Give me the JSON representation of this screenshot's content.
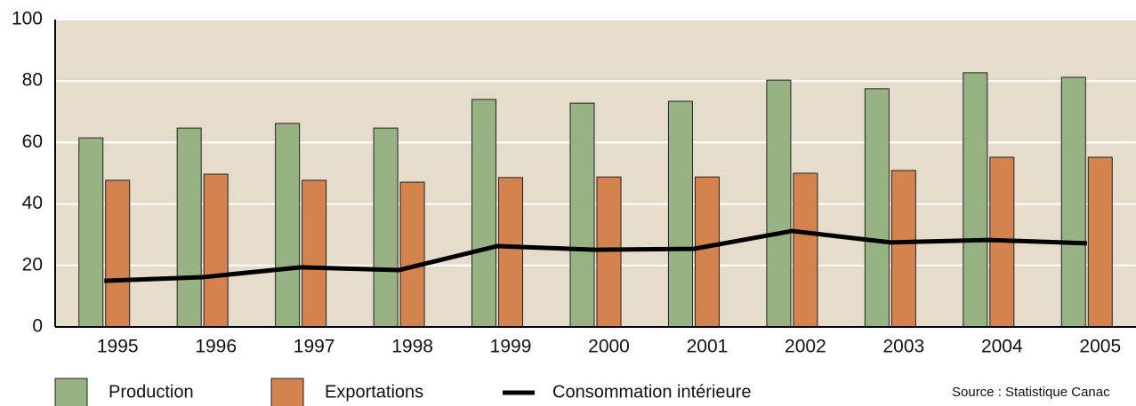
{
  "chart_data": {
    "type": "bar",
    "categories": [
      "1995",
      "1996",
      "1997",
      "1998",
      "1999",
      "2000",
      "2001",
      "2002",
      "2003",
      "2004",
      "2005"
    ],
    "series": [
      {
        "name": "Production",
        "type": "bar",
        "color": "#98b383",
        "values": [
          61.5,
          64.7,
          66.2,
          64.7,
          74,
          72.8,
          73.4,
          80.3,
          77.5,
          82.7,
          81.2
        ]
      },
      {
        "name": "Exportations",
        "type": "bar",
        "color": "#d4834e",
        "values": [
          47.7,
          49.7,
          47.7,
          47.1,
          48.6,
          48.8,
          48.8,
          50,
          50.9,
          55.2,
          55.2
        ]
      },
      {
        "name": "Consommation intérieure",
        "type": "line",
        "color": "#000000",
        "values": [
          15,
          16.2,
          19.4,
          18.5,
          26.3,
          25.1,
          25.4,
          31.2,
          27.5,
          28.3,
          27.2
        ]
      }
    ],
    "ylim": [
      0,
      100
    ],
    "yticks": [
      0,
      20,
      40,
      60,
      80,
      100
    ],
    "grid": true,
    "background": "#e5dccb",
    "source": "Source : Statistique Canac"
  }
}
